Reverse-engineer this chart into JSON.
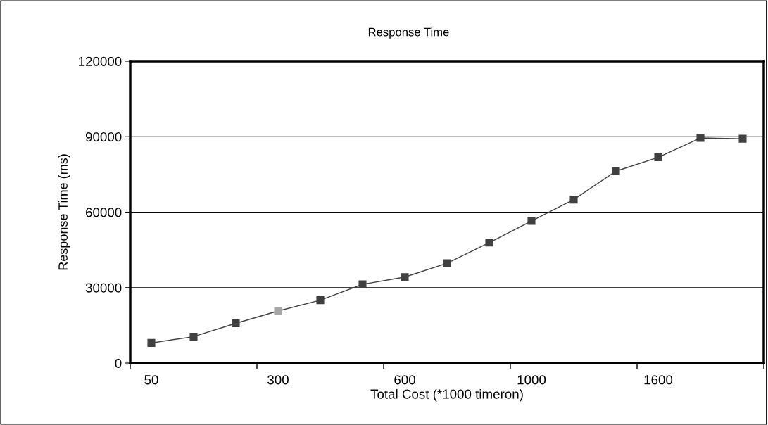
{
  "chart_data": {
    "type": "line",
    "title": "Response Time",
    "xlabel": "Total Cost (*1000 timeron)",
    "ylabel": "Response Time (ms)",
    "categories": [
      "50",
      null,
      null,
      "300",
      null,
      null,
      "600",
      null,
      null,
      "1000",
      null,
      null,
      "1600",
      null,
      null
    ],
    "series": [
      {
        "color": "#404040",
        "colors": [
          "#404040",
          "#404040",
          "#404040",
          "#a6a6a6",
          "#404040",
          "#404040",
          "#404040",
          "#404040",
          "#404040",
          "#404040",
          "#404040",
          "#404040",
          "#404040",
          "#404040",
          "#404040"
        ],
        "values": [
          8000,
          10500,
          15800,
          20700,
          25000,
          31300,
          34200,
          39700,
          47900,
          56500,
          65000,
          76300,
          81800,
          89500,
          89200
        ]
      }
    ],
    "ylim": [
      0,
      120000
    ],
    "yticks": [
      0,
      30000,
      60000,
      90000,
      120000
    ],
    "grid": "y",
    "marker": "square",
    "line_style": "solid"
  }
}
